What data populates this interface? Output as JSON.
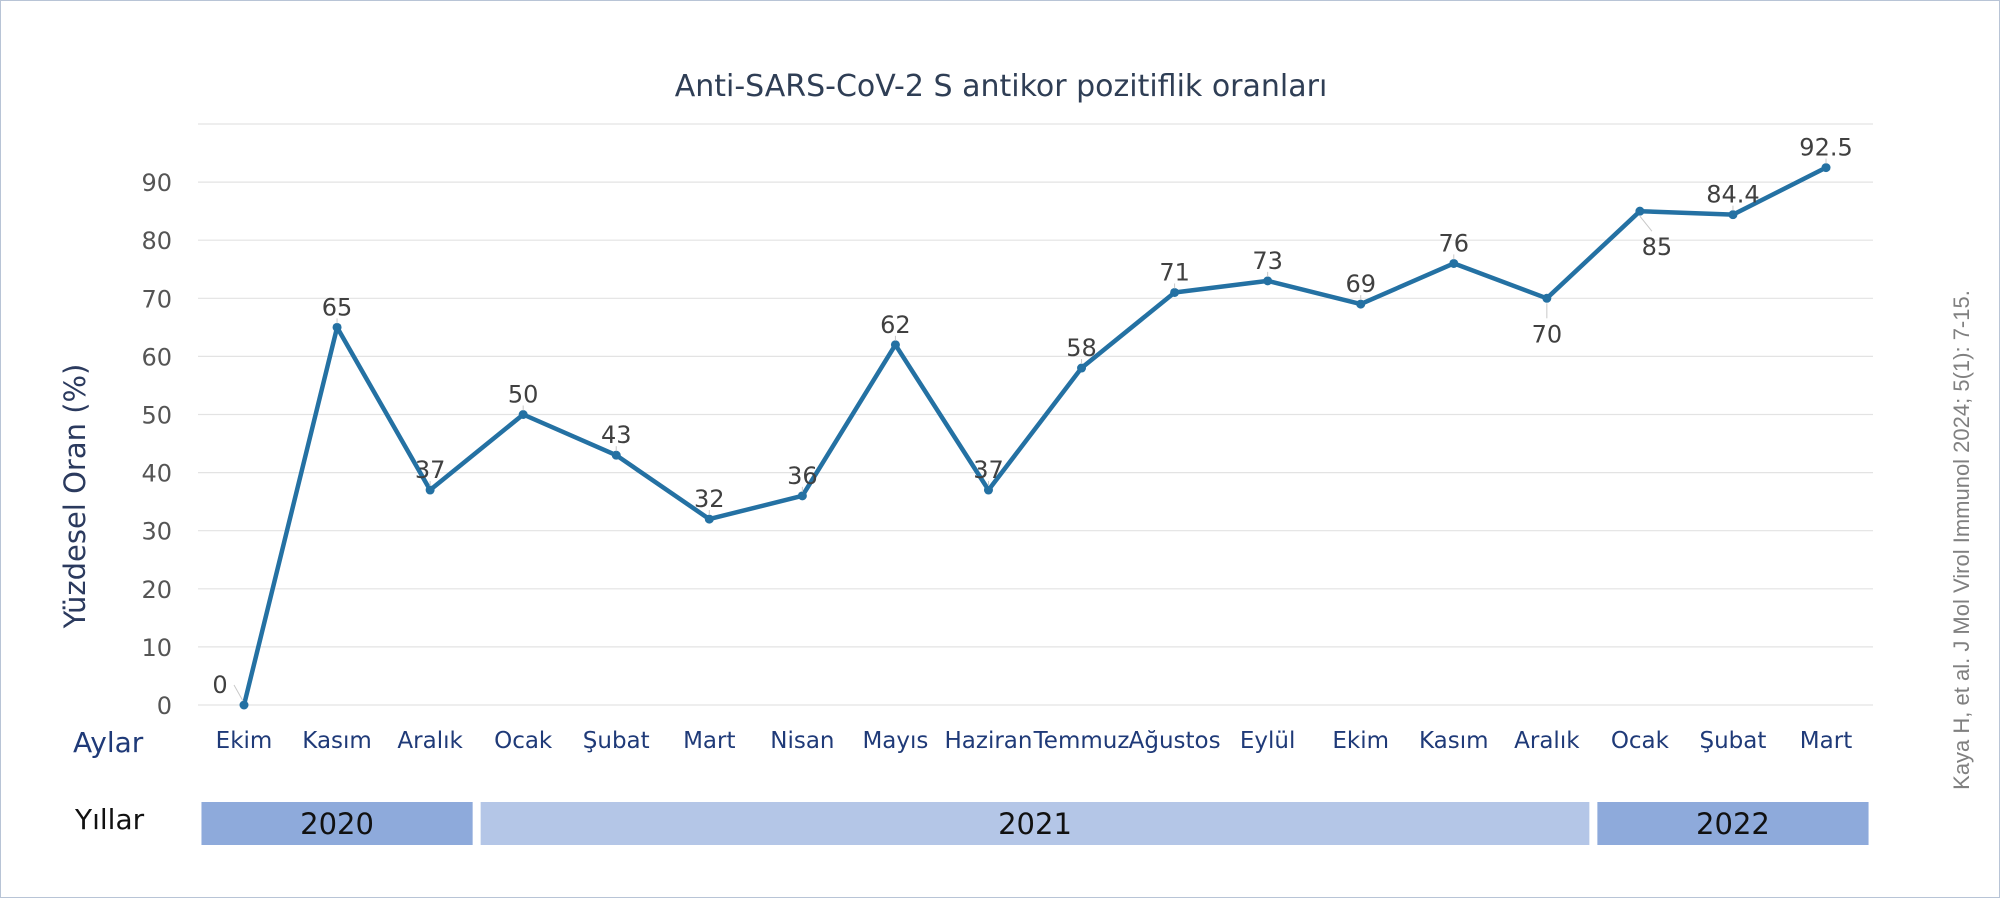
{
  "chart_data": {
    "type": "line",
    "title": "Anti-SARS-CoV-2 S antikor pozitiflik oranları",
    "ylabel": "Yüzdesel Oran (%)",
    "ylim": [
      0,
      100
    ],
    "yticks": [
      0,
      10,
      20,
      30,
      40,
      50,
      60,
      70,
      80,
      90
    ],
    "grid": true,
    "categories": [
      "Ekim",
      "Kasım",
      "Aralık",
      "Ocak",
      "Şubat",
      "Mart",
      "Nisan",
      "Mayıs",
      "Haziran",
      "Temmuz",
      "Ağustos",
      "Eylül",
      "Ekim",
      "Kasım",
      "Aralık",
      "Ocak",
      "Şubat",
      "Mart"
    ],
    "series": [
      {
        "values": [
          0,
          65,
          37,
          50,
          43,
          32,
          36,
          62,
          37,
          58,
          71,
          73,
          69,
          76,
          70,
          85,
          84.4,
          92.5
        ],
        "labels": [
          "0",
          "65",
          "37",
          "50",
          "43",
          "32",
          "36",
          "62",
          "37",
          "58",
          "71",
          "73",
          "69",
          "76",
          "70",
          "85",
          "84.4",
          "92.5"
        ],
        "color": "#2471a3"
      }
    ],
    "months_row_label": "Aylar",
    "years_row_label": "Yıllar",
    "years": [
      {
        "label": "2020",
        "start_index": 0,
        "end_index": 2,
        "color": "#8eaadb"
      },
      {
        "label": "2021",
        "start_index": 3,
        "end_index": 14,
        "color": "#b4c6e7"
      },
      {
        "label": "2022",
        "start_index": 15,
        "end_index": 17,
        "color": "#8eaadb"
      }
    ]
  },
  "citation": "Kaya H, et al. J Mol Virol Immunol 2024; 5(1): 7-15.",
  "colors": {
    "axis_text": "#555555",
    "month_text": "#1f3a78",
    "gridline": "#e3e3e3"
  }
}
